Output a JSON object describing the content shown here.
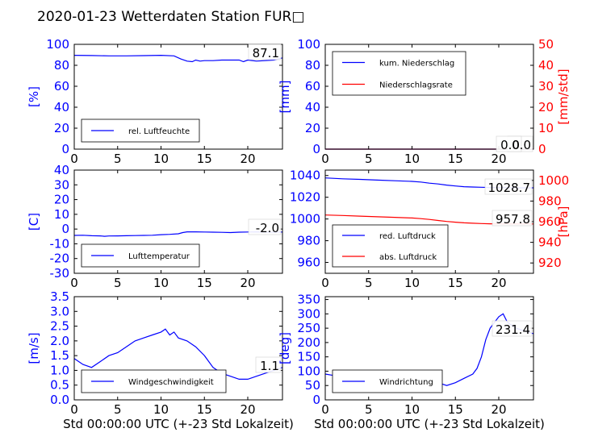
{
  "page": {
    "title": "2020-01-23 Wetterdaten Station FUR□"
  },
  "colors": {
    "left_axis": "#0000ff",
    "right_axis": "#ff0000",
    "series_primary": "#0000ff",
    "series_secondary": "#ff0000",
    "frame": "#000000"
  },
  "chart_data": [
    {
      "id": "humidity",
      "type": "line",
      "xlim": [
        0,
        24
      ],
      "xticks": [
        0,
        5,
        10,
        15,
        20
      ],
      "ylabel": "[%]",
      "ylim": [
        0,
        100
      ],
      "yticks": [
        0,
        20,
        40,
        60,
        80,
        100
      ],
      "legend_location": "lower-left",
      "annotation": "87.1",
      "series": [
        {
          "name": "rel. Luftfeuchte",
          "axis": "left",
          "color": "#0000ff",
          "x": [
            0,
            2,
            4,
            6,
            8,
            10,
            11.5,
            12.3,
            13,
            13.6,
            14,
            14.5,
            15,
            16,
            17,
            18,
            19,
            19.5,
            20,
            21,
            22,
            23,
            24
          ],
          "y": [
            89.5,
            89.3,
            89,
            89,
            89.2,
            89.5,
            89,
            86,
            84,
            83.5,
            85,
            84,
            84.5,
            84.5,
            85,
            85,
            85,
            83.5,
            85,
            84,
            84.5,
            85,
            87.1
          ]
        }
      ]
    },
    {
      "id": "precipitation",
      "type": "line",
      "xlim": [
        0,
        24
      ],
      "xticks": [
        0,
        5,
        10,
        15,
        20
      ],
      "ylabel": "[mm]",
      "ylim": [
        0,
        100
      ],
      "yticks": [
        0,
        20,
        40,
        60,
        80,
        100
      ],
      "ylabel_right": "[mm/std]",
      "ylim_right": [
        0,
        50
      ],
      "yticks_right": [
        0,
        10,
        20,
        30,
        40,
        50
      ],
      "legend_location": "upper-left",
      "annotations": [
        "0.0",
        "0.0"
      ],
      "series": [
        {
          "name": "kum. Niederschlag",
          "axis": "left",
          "color": "#0000ff",
          "x": [
            0,
            24
          ],
          "y": [
            0,
            0
          ]
        },
        {
          "name": "Niederschlagsrate",
          "axis": "right",
          "color": "#ff0000",
          "x": [
            0,
            24
          ],
          "y": [
            0,
            0
          ]
        }
      ]
    },
    {
      "id": "temperature",
      "type": "line",
      "xlim": [
        0,
        24
      ],
      "xticks": [
        0,
        5,
        10,
        15,
        20
      ],
      "ylabel": "[C]",
      "ylim": [
        -30,
        40
      ],
      "yticks": [
        -30,
        -20,
        -10,
        0,
        10,
        20,
        30,
        40
      ],
      "legend_location": "lower-left",
      "annotation": "-2.0",
      "series": [
        {
          "name": "Lufttemperatur",
          "axis": "left",
          "color": "#0000ff",
          "x": [
            0,
            1,
            2,
            3,
            3.5,
            4,
            5,
            6,
            7,
            8,
            9,
            10,
            11,
            12,
            12.5,
            13,
            14,
            15,
            16,
            17,
            18,
            19,
            20,
            21,
            22,
            23,
            24
          ],
          "y": [
            -4.3,
            -4.2,
            -4.5,
            -4.6,
            -4.9,
            -4.7,
            -4.6,
            -4.5,
            -4.4,
            -4.3,
            -4.2,
            -3.8,
            -3.6,
            -3.2,
            -2.4,
            -1.9,
            -1.9,
            -2.0,
            -2.1,
            -2.2,
            -2.4,
            -2.1,
            -2.0,
            -1.9,
            -2.0,
            -2.1,
            -2.0
          ]
        }
      ]
    },
    {
      "id": "pressure",
      "type": "line",
      "xlim": [
        0,
        24
      ],
      "xticks": [
        0,
        5,
        10,
        15,
        20
      ],
      "ylim": [
        950,
        1045
      ],
      "yticks": [
        960,
        980,
        1000,
        1020,
        1040
      ],
      "ylabel_right": "[hPa]",
      "ylim_right": [
        910,
        1010
      ],
      "yticks_right": [
        920,
        940,
        960,
        980,
        1000
      ],
      "legend_location": "lower-left",
      "annotations": [
        "1028.7",
        "957.8"
      ],
      "series": [
        {
          "name": "red. Luftdruck",
          "axis": "left",
          "color": "#0000ff",
          "x": [
            0,
            2,
            4,
            6,
            8,
            10,
            11,
            12,
            13,
            14,
            15,
            16,
            17,
            18,
            19,
            20,
            21,
            22,
            23,
            24
          ],
          "y": [
            1037.8,
            1037,
            1036.5,
            1035.8,
            1035.2,
            1034.6,
            1034,
            1033,
            1032.2,
            1031.2,
            1030.4,
            1029.7,
            1029.4,
            1029.2,
            1029.0,
            1028.9,
            1028.8,
            1028.7,
            1028.7,
            1028.7
          ]
        },
        {
          "name": "abs. Luftdruck",
          "axis": "right",
          "color": "#ff0000",
          "x": [
            0,
            2,
            4,
            6,
            8,
            10,
            11,
            12,
            13,
            14,
            15,
            16,
            17,
            18,
            19,
            20,
            21,
            22,
            23,
            24
          ],
          "y": [
            966.5,
            966,
            965.4,
            964.8,
            964.2,
            963.6,
            963,
            962.2,
            961.2,
            960.2,
            959.5,
            958.9,
            958.5,
            958.2,
            958.0,
            957.9,
            957.8,
            957.8,
            957.8,
            957.8
          ]
        }
      ]
    },
    {
      "id": "wind_speed",
      "type": "line",
      "xlabel": "Std 00:00:00 UTC (+-23 Std Lokalzeit)",
      "xlim": [
        0,
        24
      ],
      "xticks": [
        0,
        5,
        10,
        15,
        20
      ],
      "ylabel": "[m/s]",
      "ylim": [
        0,
        3.5
      ],
      "yticks": [
        0.0,
        0.5,
        1.0,
        1.5,
        2.0,
        2.5,
        3.0,
        3.5
      ],
      "legend_location": "lower-left",
      "annotation": "1.1",
      "series": [
        {
          "name": "Windgeschwindigkeit",
          "axis": "left",
          "color": "#0000ff",
          "x": [
            0,
            1,
            2,
            3,
            4,
            5,
            6,
            7,
            8,
            9,
            10,
            10.5,
            11,
            11.5,
            12,
            13,
            14,
            15,
            16,
            17,
            18,
            19,
            20,
            21,
            22,
            23,
            24
          ],
          "y": [
            1.4,
            1.2,
            1.1,
            1.3,
            1.5,
            1.6,
            1.8,
            2.0,
            2.1,
            2.2,
            2.3,
            2.4,
            2.2,
            2.3,
            2.1,
            2.0,
            1.8,
            1.5,
            1.1,
            0.9,
            0.8,
            0.7,
            0.7,
            0.8,
            0.9,
            1.0,
            1.1
          ]
        }
      ]
    },
    {
      "id": "wind_direction",
      "type": "line",
      "xlabel": "Std 00:00:00 UTC (+-23 Std Lokalzeit)",
      "xlim": [
        0,
        24
      ],
      "xticks": [
        0,
        5,
        10,
        15,
        20
      ],
      "ylabel": "[deg]",
      "ylim": [
        0,
        360
      ],
      "yticks": [
        0,
        50,
        100,
        150,
        200,
        250,
        300,
        350
      ],
      "legend_location": "lower-left",
      "annotation": "231.4",
      "series": [
        {
          "name": "Windrichtung",
          "axis": "left",
          "color": "#0000ff",
          "x": [
            0,
            1,
            2,
            3,
            4,
            5,
            6,
            7,
            8,
            9,
            10,
            11,
            12,
            13,
            14,
            15,
            16,
            17,
            17.5,
            18,
            18.5,
            19,
            20,
            20.5,
            21,
            22,
            23,
            24
          ],
          "y": [
            90,
            85,
            90,
            80,
            85,
            80,
            80,
            75,
            75,
            80,
            75,
            75,
            70,
            60,
            50,
            60,
            75,
            90,
            110,
            150,
            210,
            250,
            290,
            300,
            270,
            250,
            240,
            231
          ]
        }
      ]
    }
  ]
}
